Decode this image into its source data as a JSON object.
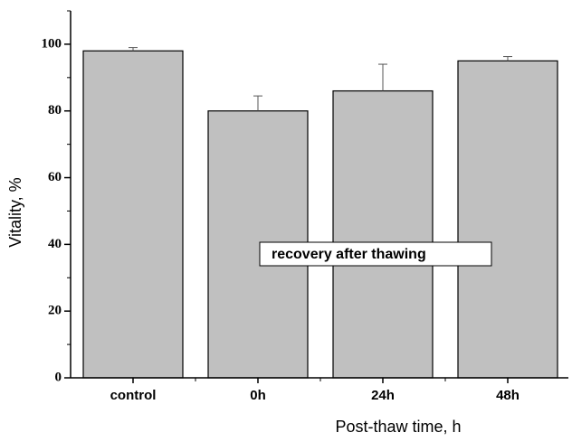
{
  "chart_data": {
    "type": "bar",
    "categories": [
      "control",
      "0h",
      "24h",
      "48h"
    ],
    "values": [
      98,
      80,
      86,
      95
    ],
    "errors": [
      1,
      4.5,
      8,
      1.3
    ],
    "color": "#c0c0c0",
    "ylim": [
      0,
      110
    ],
    "yticks": [
      0,
      20,
      40,
      60,
      80,
      100
    ],
    "yminor_ticks": [
      10,
      30,
      50,
      70,
      90,
      110
    ],
    "xlabel": "Post-thaw time, h",
    "ylabel": "Vitality, %",
    "annotation": "recovery after thawing"
  }
}
